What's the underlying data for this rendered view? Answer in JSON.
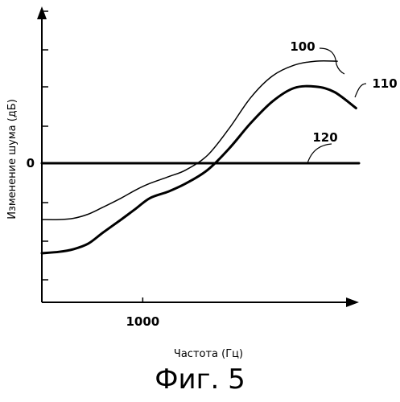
{
  "chart_data": {
    "type": "line",
    "title": "",
    "xlabel": "Частота (Гц)",
    "ylabel": "Изменение шума (дБ)",
    "x_ticks": [
      {
        "value": 1000,
        "label": "1000"
      }
    ],
    "y_ticks": [
      {
        "value": 0,
        "label": "0"
      }
    ],
    "xlim": [
      300,
      2500
    ],
    "ylim": [
      -10,
      10
    ],
    "grid": false,
    "legend": "none",
    "series": [
      {
        "name": "100",
        "x": [
          300,
          420,
          520,
          620,
          720,
          850,
          950,
          1050,
          1180,
          1300,
          1450,
          1600,
          1750,
          1900,
          2050,
          2200,
          2350
        ],
        "y": [
          -4.2,
          -4.2,
          -4.1,
          -3.8,
          -3.3,
          -2.6,
          -2.0,
          -1.5,
          -1.0,
          -0.5,
          0.6,
          2.6,
          4.9,
          6.5,
          7.3,
          7.6,
          7.6
        ]
      },
      {
        "name": "110",
        "x": [
          300,
          420,
          520,
          620,
          720,
          850,
          950,
          1050,
          1180,
          1300,
          1450,
          1600,
          1750,
          1900,
          2050,
          2200,
          2330,
          2480
        ],
        "y": [
          -6.7,
          -6.6,
          -6.4,
          -6.0,
          -5.2,
          -4.2,
          -3.4,
          -2.6,
          -2.1,
          -1.5,
          -0.5,
          1.1,
          3.0,
          4.6,
          5.6,
          5.7,
          5.3,
          4.1
        ]
      },
      {
        "name": "120",
        "x": [
          300,
          2500
        ],
        "y": [
          0,
          0
        ]
      }
    ]
  },
  "caption": "Фиг. 5"
}
